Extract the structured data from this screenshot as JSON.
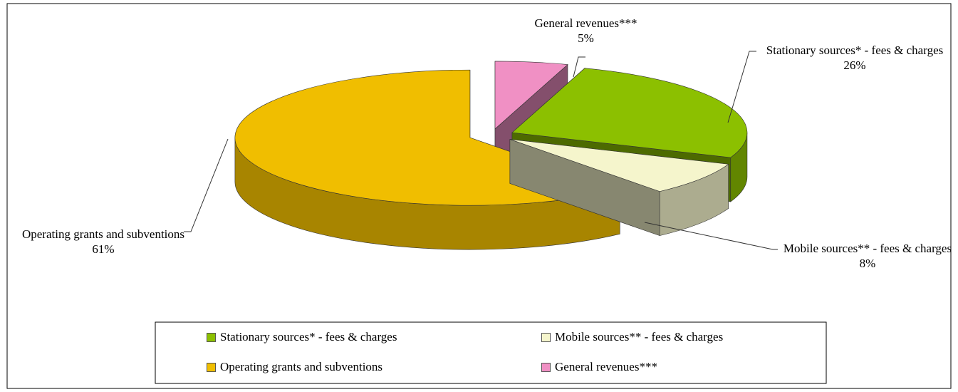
{
  "chart_data": {
    "type": "pie",
    "categories": [
      "Stationary sources* - fees & charges",
      "Mobile sources** - fees & charges",
      "Operating grants and subventions",
      "General revenues***"
    ],
    "values": [
      26,
      8,
      61,
      5
    ],
    "value_labels": [
      "26%",
      "8%",
      "61%",
      "5%"
    ],
    "colors": [
      "#8cc000",
      "#f5f5cc",
      "#f0be00",
      "#f090c4"
    ],
    "legend": "bottom"
  }
}
